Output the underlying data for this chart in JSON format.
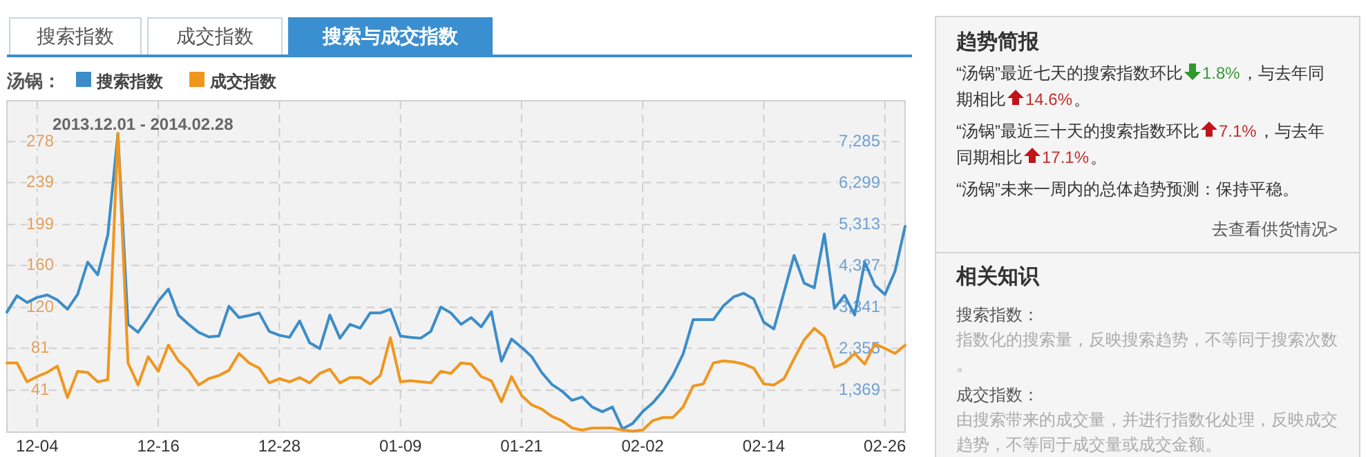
{
  "chart_data": [
    {
      "type": "line",
      "title": "汤锅：",
      "annotations": [
        "搜索指数",
        "成交指数",
        "搜索与成交指数",
        "2013.12.01 - 2014.02.28"
      ],
      "x": [
        "2013-12-01",
        "2013-12-02",
        "2013-12-03",
        "2013-12-04",
        "2013-12-05",
        "2013-12-06",
        "2013-12-07",
        "2013-12-08",
        "2013-12-09",
        "2013-12-10",
        "2013-12-11",
        "2013-12-12",
        "2013-12-13",
        "2013-12-14",
        "2013-12-15",
        "2013-12-16",
        "2013-12-17",
        "2013-12-18",
        "2013-12-19",
        "2013-12-20",
        "2013-12-21",
        "2013-12-22",
        "2013-12-23",
        "2013-12-24",
        "2013-12-25",
        "2013-12-26",
        "2013-12-27",
        "2013-12-28",
        "2013-12-29",
        "2013-12-30",
        "2013-12-31",
        "2014-01-01",
        "2014-01-02",
        "2014-01-03",
        "2014-01-04",
        "2014-01-05",
        "2014-01-06",
        "2014-01-07",
        "2014-01-08",
        "2014-01-09",
        "2014-01-10",
        "2014-01-11",
        "2014-01-12",
        "2014-01-13",
        "2014-01-14",
        "2014-01-15",
        "2014-01-16",
        "2014-01-17",
        "2014-01-18",
        "2014-01-19",
        "2014-01-20",
        "2014-01-21",
        "2014-01-22",
        "2014-01-23",
        "2014-01-24",
        "2014-01-25",
        "2014-01-26",
        "2014-01-27",
        "2014-01-28",
        "2014-01-29",
        "2014-01-30",
        "2014-01-31",
        "2014-02-01",
        "2014-02-02",
        "2014-02-03",
        "2014-02-04",
        "2014-02-05",
        "2014-02-06",
        "2014-02-07",
        "2014-02-08",
        "2014-02-09",
        "2014-02-10",
        "2014-02-11",
        "2014-02-12",
        "2014-02-13",
        "2014-02-14",
        "2014-02-15",
        "2014-02-16",
        "2014-02-17",
        "2014-02-18",
        "2014-02-19",
        "2014-02-20",
        "2014-02-21",
        "2014-02-22",
        "2014-02-23",
        "2014-02-24",
        "2014-02-25",
        "2014-02-26",
        "2014-02-27",
        "2014-02-28"
      ],
      "series": [
        {
          "name": "搜索指数",
          "color": "#3c8dc8",
          "axis": "y2",
          "values": [
            3240,
            3630,
            3470,
            3590,
            3650,
            3530,
            3310,
            3660,
            4430,
            4130,
            5080,
            7490,
            2950,
            2760,
            3110,
            3500,
            3790,
            3170,
            2950,
            2760,
            2650,
            2670,
            3380,
            3110,
            3160,
            3220,
            2780,
            2690,
            2640,
            3030,
            2510,
            2370,
            3170,
            2620,
            2950,
            2860,
            3220,
            3220,
            3310,
            2670,
            2640,
            2620,
            2780,
            3360,
            3220,
            2950,
            3110,
            2890,
            3250,
            2070,
            2600,
            2400,
            2180,
            1800,
            1520,
            1360,
            1140,
            1220,
            980,
            870,
            980,
            460,
            590,
            870,
            1080,
            1360,
            1740,
            2240,
            3060,
            3060,
            3060,
            3390,
            3600,
            3690,
            3550,
            3000,
            2840,
            3710,
            4590,
            3930,
            3820,
            5100,
            3330,
            3640,
            3170,
            4430,
            3880,
            3660,
            4210,
            5280
          ]
        },
        {
          "name": "成交指数",
          "color": "#f0961e",
          "values": [
            67,
            67,
            49,
            54,
            58,
            64,
            34,
            59,
            58,
            49,
            51,
            286,
            67,
            46,
            73,
            59,
            84,
            69,
            60,
            46,
            52,
            55,
            60,
            76,
            67,
            62,
            48,
            52,
            49,
            53,
            48,
            57,
            61,
            48,
            53,
            53,
            47,
            55,
            91,
            49,
            50,
            49,
            48,
            59,
            57,
            67,
            66,
            54,
            50,
            30,
            54,
            36,
            27,
            23,
            16,
            12,
            5,
            3,
            5,
            5,
            5,
            3,
            2,
            3,
            12,
            15,
            15,
            25,
            45,
            47,
            67,
            69,
            68,
            66,
            62,
            47,
            46,
            52,
            71,
            89,
            100,
            92,
            63,
            67,
            76,
            66,
            85,
            81,
            76,
            84
          ]
        }
      ],
      "xlim": [
        "2013-12-01",
        "2014-02-28"
      ],
      "xticks": [
        {
          "value": "2013-12-04",
          "label": "12-04"
        },
        {
          "value": "2013-12-16",
          "label": "12-16"
        },
        {
          "value": "2013-12-28",
          "label": "12-28"
        },
        {
          "value": "2014-01-09",
          "label": "01-09"
        },
        {
          "value": "2014-01-21",
          "label": "01-21"
        },
        {
          "value": "2014-02-02",
          "label": "02-02"
        },
        {
          "value": "2014-02-14",
          "label": "02-14"
        },
        {
          "value": "2014-02-26",
          "label": "02-26"
        }
      ],
      "ylim": [
        1,
        317
      ],
      "yticks": [
        41,
        81,
        120,
        160,
        199,
        239,
        278
      ],
      "y2lim": [
        383,
        8271
      ],
      "y2ticks": [
        {
          "value": 1369,
          "label": "1,369"
        },
        {
          "value": 2355,
          "label": "2,355"
        },
        {
          "value": 3341,
          "label": "3,341"
        },
        {
          "value": 4327,
          "label": "4,327"
        },
        {
          "value": 5313,
          "label": "5,313"
        },
        {
          "value": 6299,
          "label": "6,299"
        },
        {
          "value": 7285,
          "label": "7,285"
        }
      ],
      "grid": true,
      "legend": "top left",
      "marker": "none",
      "line_style": "solid"
    },
    {
      "type": "other",
      "title": "趋势简报",
      "annotations": [
        "“汤锅”最近七天的搜索指数环比",
        "1.8%",
        "，与去年同",
        "期相比",
        "14.6%",
        "。",
        "“汤锅”最近三十天的搜索指数环比",
        "7.1%",
        "，与去年",
        "同期相比",
        "17.1%",
        "。",
        "“汤锅”未来一周内的总体趋势预测：保持平稳。",
        "去查看供货情况>"
      ]
    },
    {
      "type": "other",
      "title": "相关知识",
      "annotations": [
        "搜索指数：",
        "指数化的搜索量，反映搜索趋势，不等同于搜索次数。",
        "成交指数：",
        "由搜索带来的成交量，并进行指数化处理，反映成交趋势，不等同于成交量或成交金额。"
      ]
    }
  ]
}
